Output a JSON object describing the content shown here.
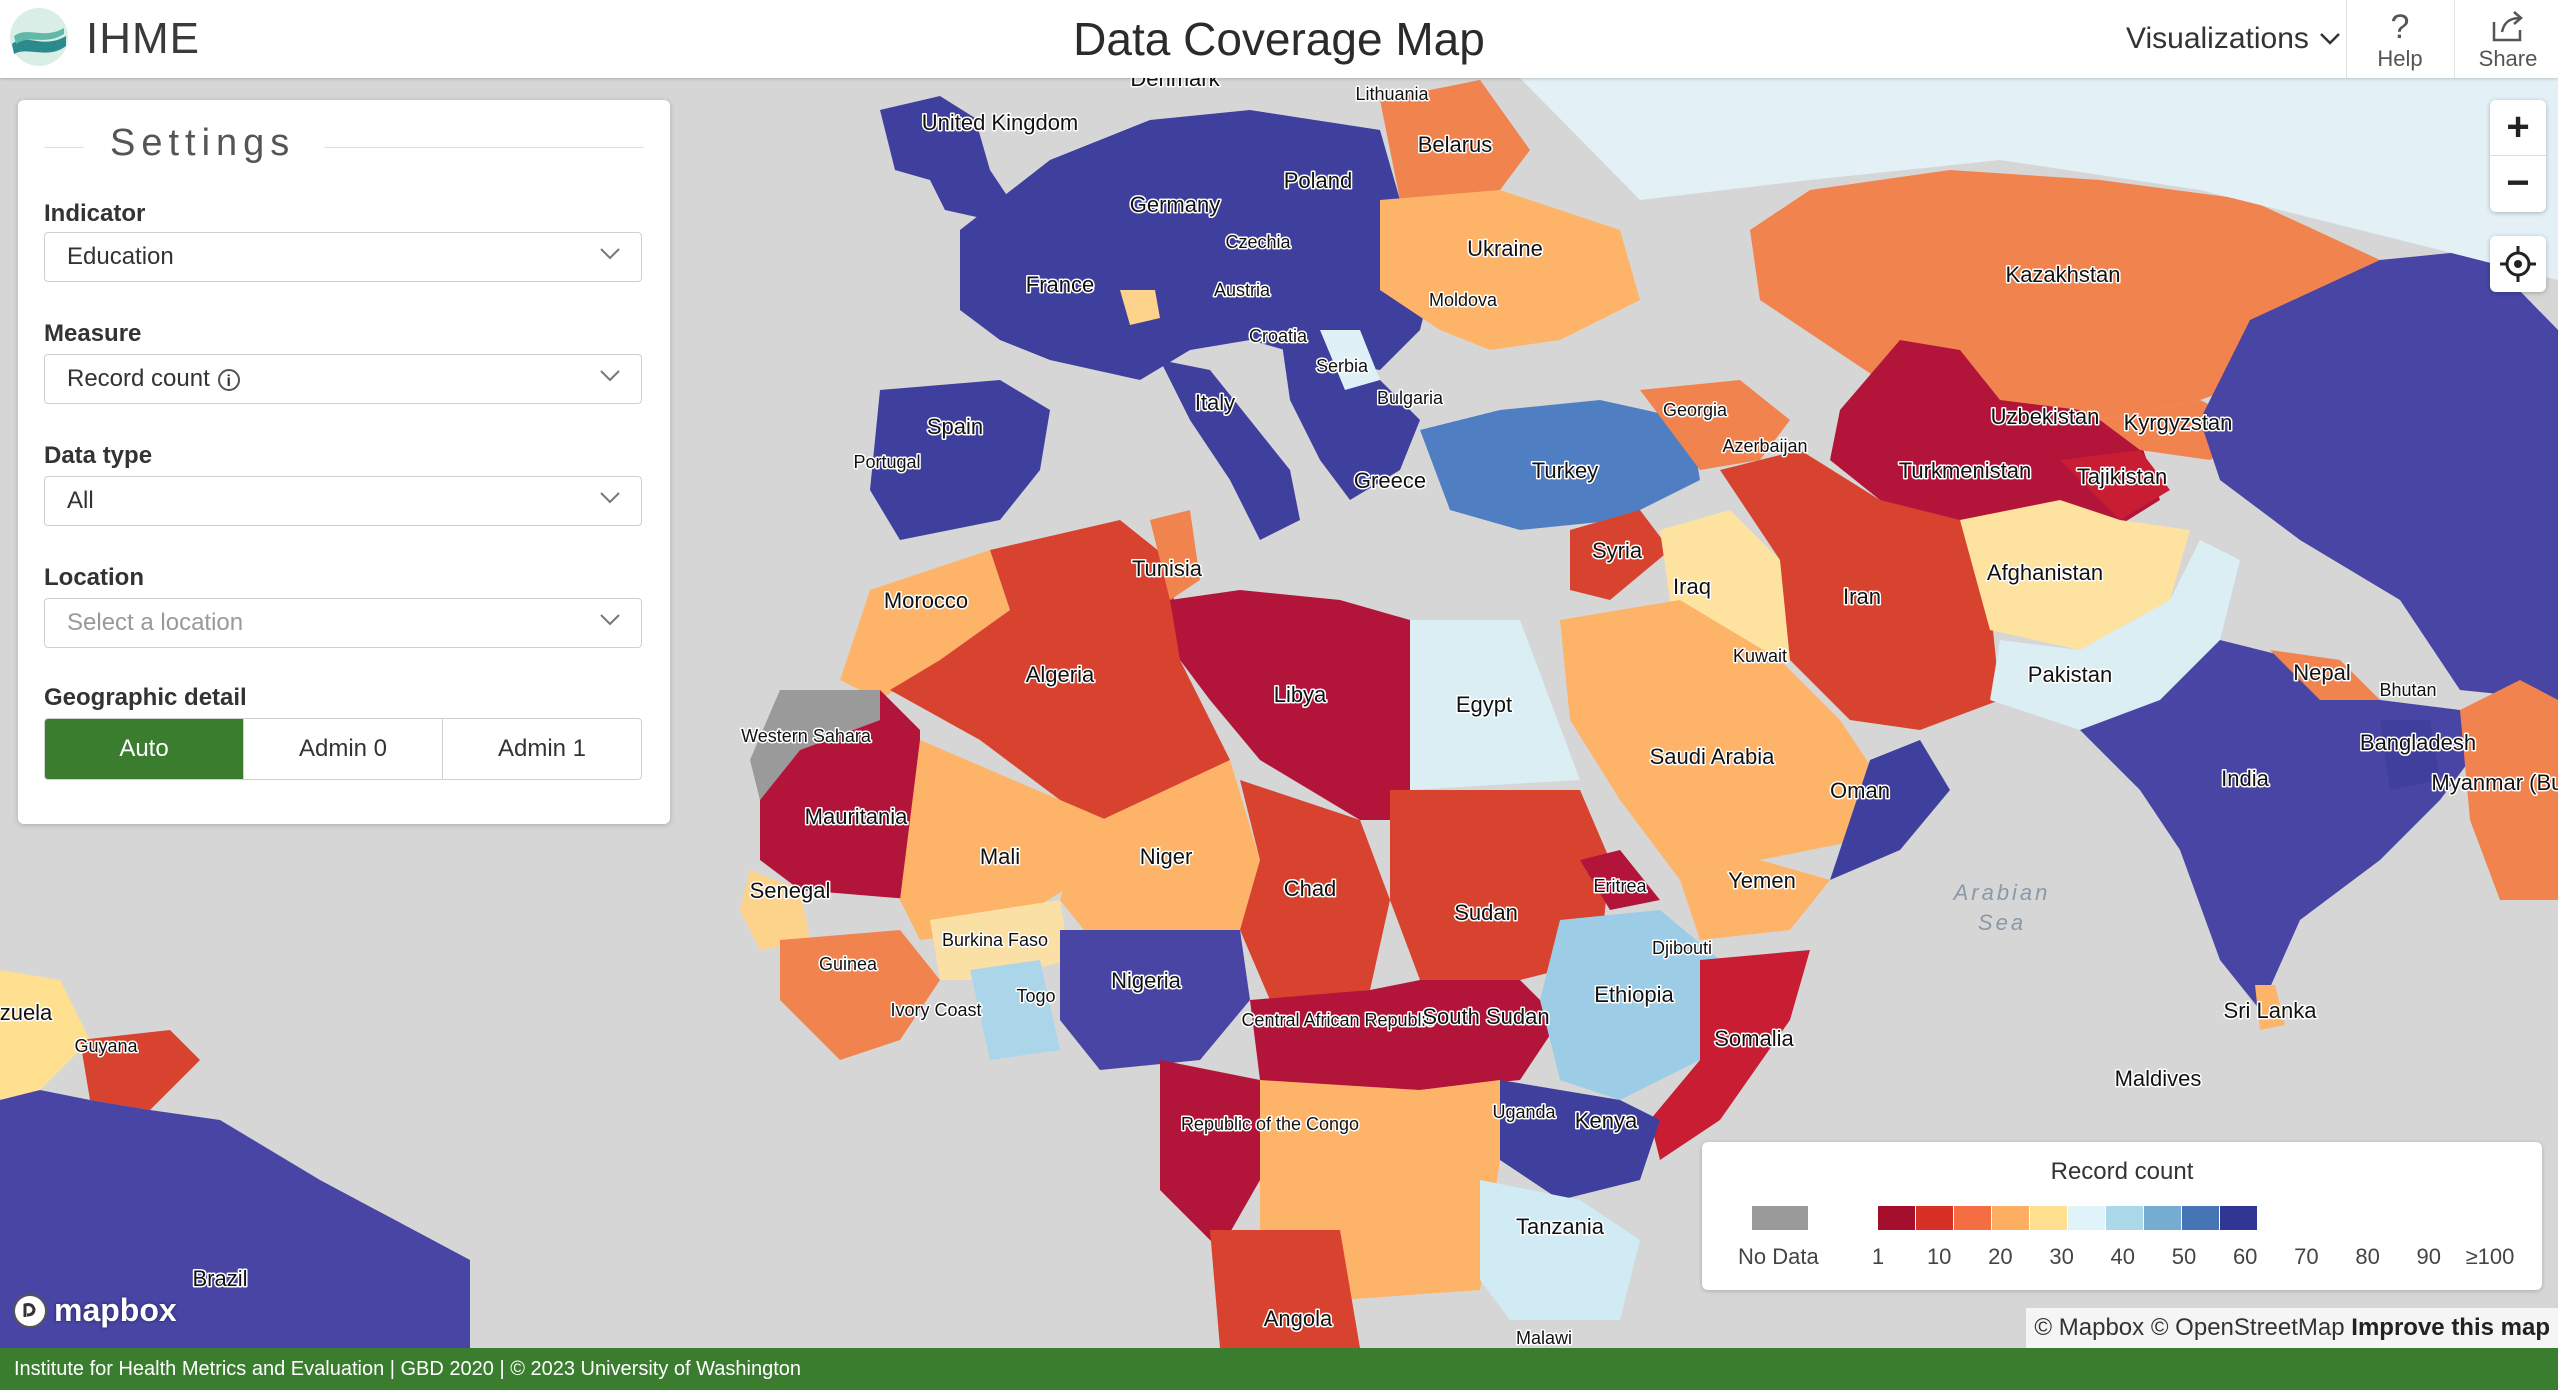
{
  "header": {
    "brand": "IHME",
    "title": "Data Coverage Map",
    "visualizations_label": "Visualizations",
    "help_label": "Help",
    "share_label": "Share"
  },
  "settings": {
    "title": "Settings",
    "indicator": {
      "label": "Indicator",
      "value": "Education"
    },
    "measure": {
      "label": "Measure",
      "value": "Record count"
    },
    "data_type": {
      "label": "Data type",
      "value": "All"
    },
    "location": {
      "label": "Location",
      "placeholder": "Select a location"
    },
    "geographic_detail": {
      "label": "Geographic detail",
      "options": [
        "Auto",
        "Admin 0",
        "Admin 1"
      ],
      "selected": "Auto"
    }
  },
  "zoom": {
    "in": "+",
    "out": "−"
  },
  "legend": {
    "title": "Record count",
    "no_data_label": "No Data",
    "no_data_color": "#9a9a9a",
    "ticks": [
      "1",
      "10",
      "20",
      "30",
      "40",
      "50",
      "60",
      "70",
      "80",
      "90",
      "≥100"
    ],
    "colors": [
      "#a50f2e",
      "#d73027",
      "#f46d43",
      "#fdae61",
      "#fee090",
      "#e0f3f8",
      "#abd9e9",
      "#74add1",
      "#4575b4",
      "#313695"
    ]
  },
  "map_labels": [
    "United Kingdom",
    "Denmark",
    "Lithuania",
    "Belarus",
    "Germany",
    "Poland",
    "Czechia",
    "France",
    "Austria",
    "Ukraine",
    "Moldova",
    "Croatia",
    "Serbia",
    "Bulgaria",
    "Italy",
    "Spain",
    "Portugal",
    "Greece",
    "Turkey",
    "Georgia",
    "Azerbaijan",
    "Kazakhstan",
    "Uzbekistan",
    "Kyrgyzstan",
    "Turkmenistan",
    "Tajikistan",
    "Syria",
    "Iraq",
    "Iran",
    "Afghanistan",
    "Kuwait",
    "Pakistan",
    "Nepal",
    "Bhutan",
    "Bangladesh",
    "India",
    "Myanmar (Burma)",
    "Tunisia",
    "Morocco",
    "Algeria",
    "Libya",
    "Egypt",
    "Saudi Arabia",
    "Oman",
    "Yemen",
    "Western Sahara",
    "Mauritania",
    "Mali",
    "Niger",
    "Chad",
    "Sudan",
    "Eritrea",
    "Djibouti",
    "Senegal",
    "Burkina Faso",
    "Guinea",
    "Ivory Coast",
    "Togo",
    "Nigeria",
    "Central African Republic",
    "South Sudan",
    "Ethiopia",
    "Somalia",
    "Uganda",
    "Kenya",
    "Republic of the Congo",
    "Tanzania",
    "Angola",
    "Malawi",
    "Sri Lanka",
    "Maldives",
    "Guyana",
    "Brazil",
    "zuela"
  ],
  "sea_label": "Arabian Sea",
  "attribution": {
    "mapbox": "© Mapbox",
    "osm": "© OpenStreetMap",
    "improve": "Improve this map"
  },
  "mapbox_logo": "mapbox",
  "footer": {
    "text": "Institute for Health Metrics and Evaluation   |   GBD 2020   |   © 2023 University of Washington"
  }
}
